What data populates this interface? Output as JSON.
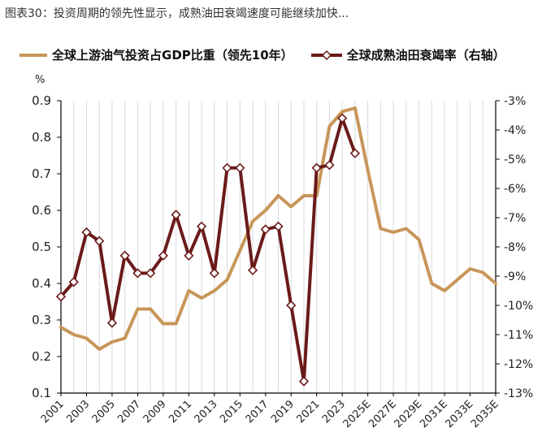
{
  "header": {
    "title": "图表30：投资周期的领先性显示，成熟油田衰竭速度可能继续加快..."
  },
  "colors": {
    "investment_line": "#C8965A",
    "decline_line": "#6B1A1A",
    "gridline": "#d9d9d9"
  },
  "chart_data": {
    "type": "line",
    "title": "",
    "left_unit": "%",
    "ylim_left": [
      0.1,
      0.9
    ],
    "ylim_right": [
      -13,
      -3
    ],
    "left_ticks": [
      "0.9",
      "0.8",
      "0.7",
      "0.6",
      "0.5",
      "0.4",
      "0.3",
      "0.2",
      "0.1"
    ],
    "right_ticks": [
      "-3%",
      "-4%",
      "-5%",
      "-6%",
      "-7%",
      "-8%",
      "-9%",
      "-10%",
      "-11%",
      "-12%",
      "-13%"
    ],
    "x_tick_labels": [
      "2001",
      "2003",
      "2005",
      "2007",
      "2009",
      "2011",
      "2013",
      "2015",
      "2017",
      "2019",
      "2021",
      "2023",
      "2025E",
      "2027E",
      "2029E",
      "2031E",
      "2033E",
      "2035E"
    ],
    "grid": true,
    "legend_position": "top",
    "series": [
      {
        "name": "全球上游油气投资占GDP比重（领先10年）",
        "axis": "left",
        "x": [
          "2001",
          "2002",
          "2003",
          "2004",
          "2005",
          "2006",
          "2007",
          "2008",
          "2009",
          "2010",
          "2011",
          "2012",
          "2013",
          "2014",
          "2015",
          "2016",
          "2017",
          "2018",
          "2019",
          "2020",
          "2021",
          "2022",
          "2023",
          "2024",
          "2025E",
          "2026E",
          "2027E",
          "2028E",
          "2029E",
          "2030E",
          "2031E",
          "2032E",
          "2033E",
          "2034E",
          "2035E"
        ],
        "values": [
          0.28,
          0.26,
          0.25,
          0.22,
          0.24,
          0.25,
          0.33,
          0.33,
          0.29,
          0.29,
          0.38,
          0.36,
          0.38,
          0.41,
          0.49,
          0.57,
          0.6,
          0.64,
          0.61,
          0.64,
          0.64,
          0.83,
          0.87,
          0.88,
          0.71,
          0.55,
          0.54,
          0.55,
          0.52,
          0.4,
          0.38,
          0.41,
          0.44,
          0.43,
          0.4
        ]
      },
      {
        "name": "全球成熟油田衰竭率（右轴）",
        "axis": "right",
        "x": [
          "2001",
          "2002",
          "2003",
          "2004",
          "2005",
          "2006",
          "2007",
          "2008",
          "2009",
          "2010",
          "2011",
          "2012",
          "2013",
          "2014",
          "2015",
          "2016",
          "2017",
          "2018",
          "2019",
          "2020",
          "2021",
          "2022",
          "2023",
          "2024"
        ],
        "values": [
          -9.7,
          -9.2,
          -7.5,
          -7.8,
          -10.6,
          -8.3,
          -8.9,
          -8.9,
          -8.3,
          -6.9,
          -8.3,
          -7.3,
          -8.9,
          -5.3,
          -5.3,
          -8.8,
          -7.4,
          -7.3,
          -10.0,
          -12.6,
          -5.3,
          -5.2,
          -3.6,
          -4.8
        ]
      }
    ]
  }
}
